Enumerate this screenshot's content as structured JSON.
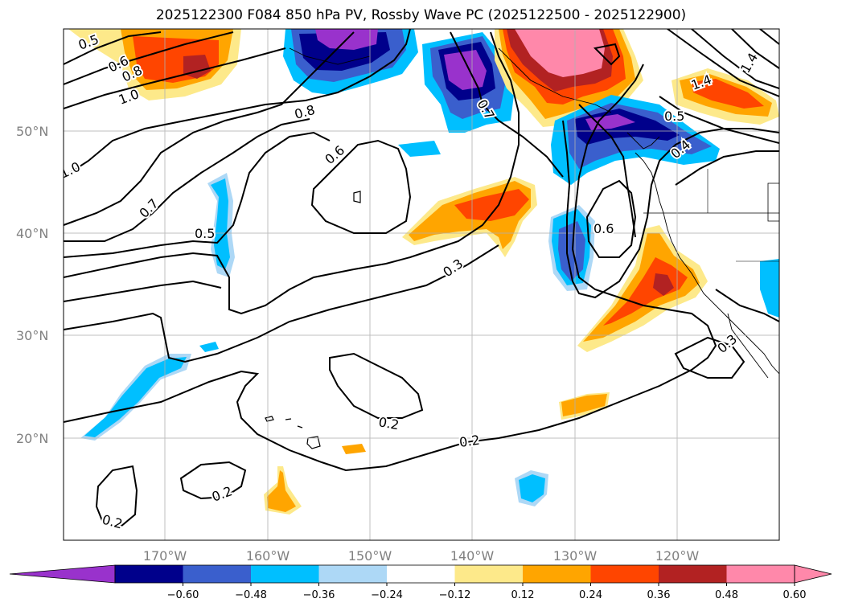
{
  "title": "2025122300 F084 850 hPa PV, Rossby Wave PC (2025122500 - 2025122900)",
  "lat_labels": [
    "50°N",
    "40°N",
    "30°N",
    "20°N"
  ],
  "lon_labels": [
    "170°W",
    "160°W",
    "150°W",
    "140°W",
    "130°W",
    "120°W"
  ],
  "contour_labels": [
    "0.5",
    "0.6",
    "0.8",
    "1.0",
    "0.8",
    "0.6",
    "1.0",
    "0.7",
    "0.5",
    "0.3",
    "0.6",
    "0.7",
    "0.2",
    "0.2",
    "0.2",
    "0.2",
    "1.4",
    "1.4",
    "0.5",
    "0.4",
    "0.3"
  ],
  "colorbar": {
    "ticks": [
      "−0.60",
      "−0.48",
      "−0.36",
      "−0.24",
      "−0.12",
      "0.12",
      "0.24",
      "0.36",
      "0.48",
      "0.60"
    ],
    "colors": [
      "#9932cc",
      "#00008b",
      "#3a5fcd",
      "#00bfff",
      "#add8f6",
      "#ffffff",
      "#fde98a",
      "#ffa500",
      "#ff4500",
      "#b22222",
      "#ff88aa",
      "#ff88aa"
    ]
  },
  "colors": {
    "purple": "#9932cc",
    "navy": "#00008b",
    "blue": "#3a5fcd",
    "sky": "#00bfff",
    "light_sky": "#add8f6",
    "light_yellow": "#fde98a",
    "orange": "#ffa500",
    "red_orange": "#ff4500",
    "dark_red": "#b22222",
    "pink": "#ff88aa"
  }
}
